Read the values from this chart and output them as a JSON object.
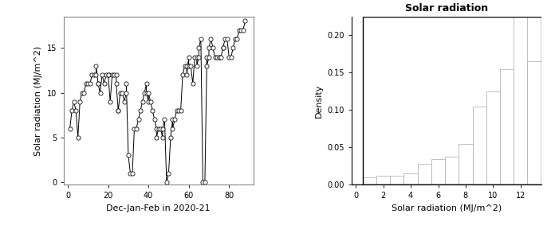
{
  "title_right": "Solar radiation",
  "xlabel_left": "Dec-Jan-Feb in 2020-21",
  "ylabel_left": "Solar radiation (MJ/m^2)",
  "xlabel_right": "Solar radiation (MJ/m^2)",
  "ylabel_right": "Density",
  "xlim_left": [
    -2,
    92
  ],
  "ylim_left": [
    -0.3,
    18.5
  ],
  "xlim_right": [
    -0.3,
    13.5
  ],
  "ylim_right": [
    0.0,
    0.225
  ],
  "xticks_left": [
    0,
    20,
    40,
    60,
    80
  ],
  "yticks_left": [
    0,
    5,
    10,
    15
  ],
  "xticks_right": [
    0,
    2,
    4,
    6,
    8,
    10,
    12
  ],
  "yticks_right": [
    0.0,
    0.05,
    0.1,
    0.15,
    0.2
  ],
  "hist_bin_edges": [
    0.5,
    1.5,
    2.5,
    3.5,
    4.5,
    5.5,
    6.5,
    7.5,
    8.5,
    9.5,
    10.5,
    11.5,
    12.5,
    13.5
  ],
  "hist_densities": [
    0.01,
    0.012,
    0.012,
    0.015,
    0.028,
    0.035,
    0.038,
    0.055,
    0.105,
    0.125,
    0.155,
    0.225,
    0.165
  ],
  "scatter_x": [
    1,
    2,
    3,
    4,
    5,
    6,
    7,
    8,
    9,
    10,
    11,
    12,
    13,
    14,
    14,
    15,
    15,
    16,
    17,
    18,
    19,
    20,
    20,
    21,
    22,
    23,
    24,
    24,
    25,
    25,
    26,
    27,
    28,
    29,
    29,
    30,
    31,
    32,
    33,
    34,
    35,
    36,
    37,
    38,
    39,
    39,
    40,
    40,
    41,
    42,
    43,
    44,
    44,
    45,
    46,
    47,
    47,
    48,
    49,
    50,
    51,
    52,
    52,
    53,
    54,
    55,
    56,
    57,
    58,
    59,
    59,
    60,
    60,
    61,
    62,
    63,
    64,
    64,
    65,
    65,
    66,
    67,
    68,
    69,
    69,
    70,
    70,
    71,
    72,
    73,
    74,
    75,
    75,
    76,
    77,
    77,
    78,
    79,
    80,
    81,
    82,
    83,
    84,
    85,
    86,
    87,
    88
  ],
  "scatter_y": [
    6,
    8,
    9,
    8,
    5,
    9,
    10,
    10,
    11,
    11,
    11,
    12,
    12,
    12,
    13,
    11,
    11,
    10,
    12,
    11,
    12,
    12,
    12,
    9,
    12,
    12,
    12,
    11,
    8,
    8,
    10,
    10,
    9,
    10,
    11,
    3,
    1,
    1,
    6,
    6,
    7,
    8,
    9,
    10,
    11,
    10,
    9,
    10,
    9,
    8,
    7,
    6,
    5,
    6,
    6,
    5,
    6,
    7,
    0,
    1,
    5,
    7,
    6,
    7,
    8,
    8,
    8,
    12,
    13,
    13,
    12,
    14,
    13,
    13,
    11,
    14,
    14,
    13,
    14,
    15,
    16,
    0,
    0,
    14,
    13,
    14,
    15,
    16,
    15,
    14,
    14,
    14,
    14,
    14,
    15,
    15,
    16,
    16,
    14,
    14,
    15,
    16,
    16,
    17,
    17,
    17,
    18
  ],
  "bg_color": "#ffffff",
  "line_color": "#000000",
  "scatter_facecolor": "#ffffff",
  "scatter_edgecolor": "#000000",
  "bar_edgecolor_outer": "#000000",
  "bar_edgecolor_inner": "#aaaaaa",
  "bar_facecolor": "#ffffff"
}
